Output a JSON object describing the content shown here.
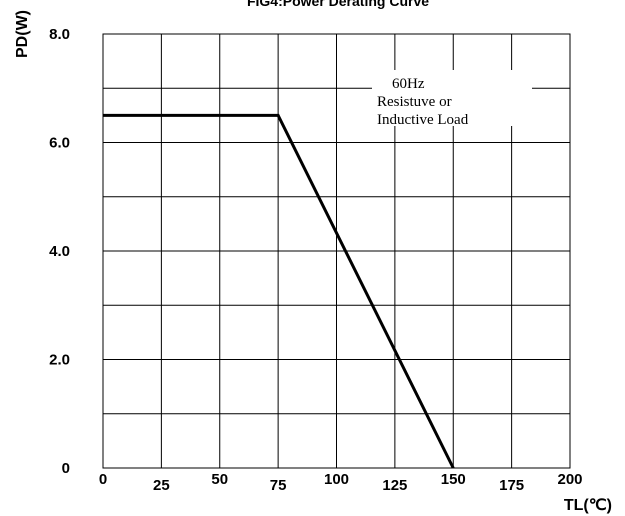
{
  "chart_data": {
    "type": "line",
    "title": "FIG4:Power Derating Curve",
    "xlabel": "TL(℃)",
    "ylabel": "PD(W)",
    "xlim": [
      0,
      200
    ],
    "ylim": [
      0,
      8
    ],
    "x_ticks": [
      "0",
      "25",
      "50",
      "75",
      "100",
      "125",
      "150",
      "175",
      "200"
    ],
    "y_ticks": [
      "0",
      "2.0",
      "4.0",
      "6.0",
      "8.0"
    ],
    "grid": true,
    "series": [
      {
        "x": [
          0,
          75,
          150
        ],
        "y": [
          6.5,
          6.5,
          0
        ]
      }
    ],
    "annotation": [
      "60Hz",
      "Resistuve or",
      "Inductive Load"
    ]
  }
}
